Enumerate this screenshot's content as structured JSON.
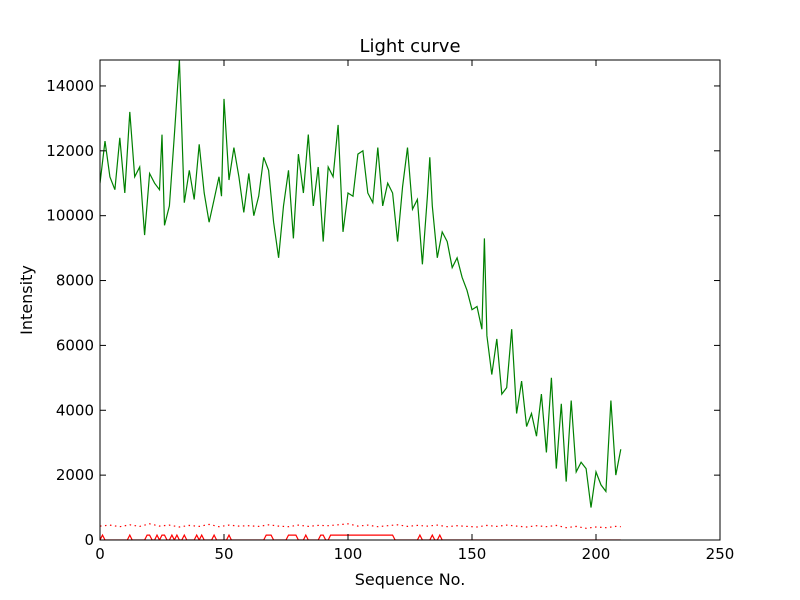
{
  "chart_data": {
    "type": "line",
    "title": "Light curve",
    "xlabel": "Sequence No.",
    "ylabel": "Intensity",
    "xlim": [
      0,
      250
    ],
    "ylim": [
      0,
      14800
    ],
    "xticks": [
      0,
      50,
      100,
      150,
      200,
      250
    ],
    "yticks": [
      0,
      2000,
      4000,
      6000,
      8000,
      10000,
      12000,
      14000
    ],
    "grid": false,
    "legend": "none",
    "series": [
      {
        "color": "#008000",
        "linestyle": "solid",
        "x": [
          0,
          2,
          4,
          6,
          8,
          10,
          12,
          14,
          16,
          18,
          20,
          22,
          24,
          25,
          26,
          28,
          30,
          32,
          34,
          36,
          38,
          40,
          42,
          44,
          46,
          48,
          49,
          50,
          52,
          54,
          56,
          58,
          60,
          62,
          64,
          66,
          68,
          70,
          72,
          74,
          76,
          78,
          80,
          82,
          84,
          86,
          88,
          90,
          92,
          94,
          96,
          98,
          100,
          102,
          104,
          106,
          108,
          110,
          112,
          114,
          116,
          118,
          120,
          122,
          124,
          126,
          128,
          130,
          132,
          133,
          134,
          136,
          138,
          140,
          142,
          144,
          146,
          148,
          150,
          152,
          154,
          155,
          156,
          158,
          160,
          162,
          164,
          166,
          168,
          170,
          172,
          174,
          176,
          178,
          180,
          182,
          184,
          186,
          188,
          190,
          192,
          194,
          196,
          198,
          200,
          202,
          204,
          206,
          208,
          210
        ],
        "y": [
          11000,
          12300,
          11200,
          10800,
          12400,
          10700,
          13200,
          11200,
          11500,
          9400,
          11300,
          11000,
          10800,
          12500,
          9700,
          10300,
          12500,
          14800,
          10400,
          11400,
          10500,
          12200,
          10700,
          9800,
          10500,
          11200,
          10600,
          13600,
          11100,
          12100,
          11200,
          10100,
          11300,
          10000,
          10600,
          11800,
          11400,
          9800,
          8700,
          10300,
          11400,
          9300,
          11900,
          10700,
          12500,
          10300,
          11500,
          9200,
          11500,
          11200,
          12800,
          9500,
          10700,
          10600,
          11900,
          12000,
          10700,
          10400,
          12100,
          10300,
          11000,
          10700,
          9200,
          10900,
          12100,
          10200,
          10500,
          8500,
          10600,
          11800,
          10300,
          8700,
          9500,
          9200,
          8400,
          8700,
          8100,
          7700,
          7100,
          7200,
          6500,
          9300,
          6300,
          5100,
          6200,
          4500,
          4700,
          6500,
          3900,
          4900,
          3500,
          3900,
          3200,
          4500,
          2700,
          5000,
          2200,
          4200,
          1800,
          4300,
          2100,
          2400,
          2200,
          1000,
          2100,
          1700,
          1500,
          4300,
          2000,
          2800
        ]
      },
      {
        "color": "#ff0000",
        "linestyle": "dotted",
        "x": [
          0,
          4,
          8,
          12,
          16,
          20,
          24,
          28,
          32,
          36,
          40,
          44,
          48,
          52,
          56,
          60,
          64,
          68,
          72,
          76,
          80,
          84,
          88,
          92,
          96,
          100,
          104,
          108,
          112,
          116,
          120,
          124,
          128,
          132,
          136,
          140,
          144,
          148,
          152,
          156,
          160,
          164,
          168,
          172,
          176,
          180,
          184,
          188,
          192,
          196,
          200,
          204,
          208,
          210
        ],
        "y": [
          430,
          460,
          410,
          470,
          420,
          500,
          430,
          460,
          400,
          450,
          420,
          480,
          410,
          460,
          430,
          440,
          420,
          470,
          430,
          410,
          460,
          420,
          450,
          440,
          470,
          500,
          430,
          460,
          410,
          440,
          470,
          420,
          450,
          430,
          460,
          410,
          440,
          420,
          400,
          450,
          420,
          460,
          430,
          400,
          440,
          410,
          450,
          380,
          420,
          360,
          400,
          380,
          420,
          410
        ]
      },
      {
        "color": "#ff0000",
        "linestyle": "solid",
        "x": [
          0,
          1,
          2,
          11,
          12,
          13,
          18,
          19,
          20,
          21,
          22,
          23,
          24,
          25,
          26,
          27,
          28,
          29,
          30,
          31,
          32,
          33,
          34,
          35,
          38,
          39,
          40,
          41,
          42,
          43,
          45,
          46,
          47,
          48,
          51,
          52,
          53,
          54,
          66,
          67,
          69,
          70,
          75,
          76,
          79,
          80,
          82,
          83,
          84,
          85,
          88,
          89,
          90,
          91,
          92,
          93,
          100,
          101,
          102,
          118,
          119,
          120,
          128,
          129,
          130,
          133,
          134,
          135,
          136,
          137,
          138,
          150,
          210
        ],
        "y": [
          0,
          150,
          0,
          0,
          150,
          0,
          0,
          150,
          150,
          0,
          0,
          150,
          0,
          150,
          150,
          0,
          0,
          150,
          0,
          150,
          0,
          0,
          150,
          0,
          0,
          150,
          0,
          150,
          0,
          0,
          0,
          150,
          0,
          0,
          0,
          150,
          0,
          0,
          0,
          150,
          150,
          0,
          0,
          150,
          150,
          0,
          0,
          150,
          0,
          0,
          0,
          150,
          150,
          0,
          0,
          150,
          150,
          150,
          150,
          150,
          0,
          0,
          0,
          150,
          0,
          0,
          150,
          0,
          0,
          150,
          0,
          0,
          0
        ]
      }
    ]
  }
}
